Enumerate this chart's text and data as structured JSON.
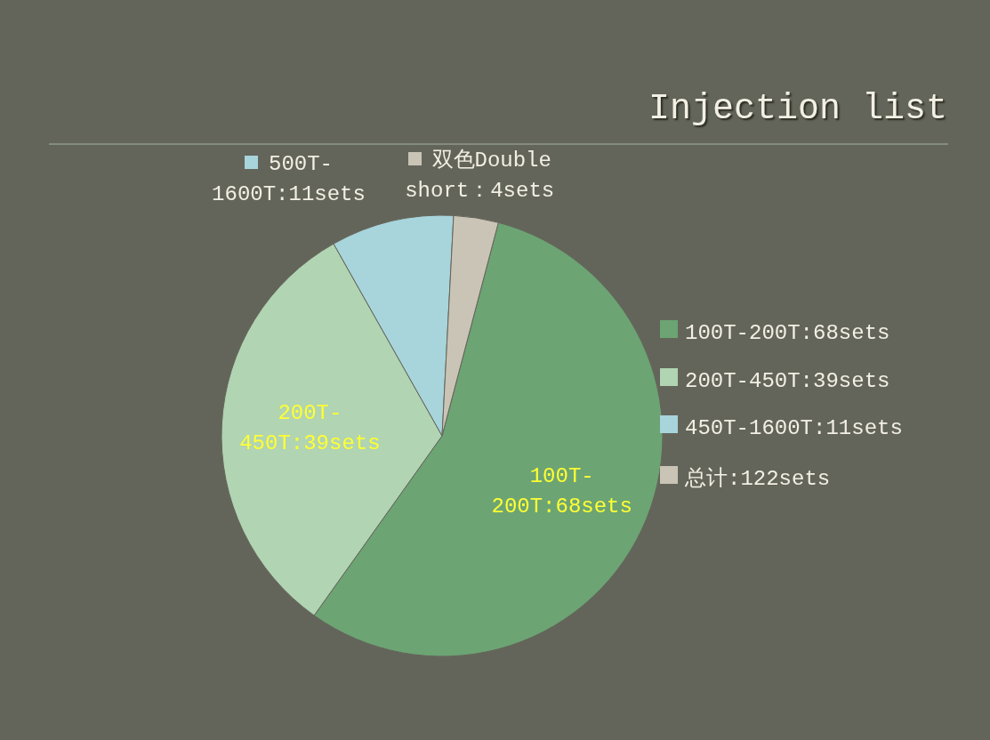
{
  "chart_data": {
    "type": "pie",
    "title": "Injection list",
    "categories": [
      "100T-200T:68sets",
      "200T-450T:39sets",
      "450T-1600T:11sets",
      "总计:122sets"
    ],
    "values": [
      68,
      39,
      11,
      4
    ],
    "colors": [
      "#6ca474",
      "#b1d4b2",
      "#a8d4dc",
      "#c9c4b5"
    ],
    "value_labels": [
      "100T-200T:68sets",
      "200T-450T:39sets",
      "500T-1600T:11sets",
      "双色Double short：4sets"
    ],
    "legend": "right"
  }
}
